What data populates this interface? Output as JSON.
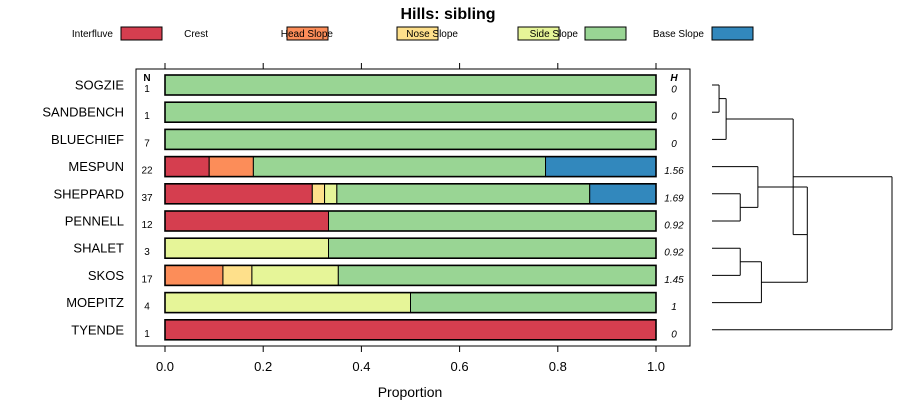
{
  "chart_data": {
    "type": "bar",
    "stacked": true,
    "orientation": "horizontal",
    "title": "Hills: sibling",
    "xlabel": "Proportion",
    "xlim": [
      0,
      1
    ],
    "x_ticks": [
      "0.0",
      "0.2",
      "0.4",
      "0.6",
      "0.8",
      "1.0"
    ],
    "n_header": "N",
    "h_header": "H",
    "legend_position": "top",
    "series": [
      {
        "name": "Interfluve",
        "color": "#d53e4f"
      },
      {
        "name": "Crest",
        "color": "#fc8d59"
      },
      {
        "name": "Head Slope",
        "color": "#fee08b"
      },
      {
        "name": "Nose Slope",
        "color": "#e6f598"
      },
      {
        "name": "Side Slope",
        "color": "#99d594"
      },
      {
        "name": "Base Slope",
        "color": "#3288bd"
      }
    ],
    "rows": [
      {
        "label": "SOGZIE",
        "n": "1",
        "h": "0",
        "values": [
          0,
          0,
          0,
          0,
          1.0,
          0
        ]
      },
      {
        "label": "SANDBENCH",
        "n": "1",
        "h": "0",
        "values": [
          0,
          0,
          0,
          0,
          1.0,
          0
        ]
      },
      {
        "label": "BLUECHIEF",
        "n": "7",
        "h": "0",
        "values": [
          0,
          0,
          0,
          0,
          1.0,
          0
        ]
      },
      {
        "label": "MESPUN",
        "n": "22",
        "h": "1.56",
        "values": [
          0.09,
          0.09,
          0,
          0,
          0.595,
          0.225
        ]
      },
      {
        "label": "SHEPPARD",
        "n": "37",
        "h": "1.69",
        "values": [
          0.3,
          0,
          0.025,
          0.025,
          0.515,
          0.135
        ]
      },
      {
        "label": "PENNELL",
        "n": "12",
        "h": "0.92",
        "values": [
          0.333,
          0,
          0,
          0,
          0.667,
          0
        ]
      },
      {
        "label": "SHALET",
        "n": "3",
        "h": "0.92",
        "values": [
          0,
          0,
          0,
          0.333,
          0.667,
          0
        ]
      },
      {
        "label": "SKOS",
        "n": "17",
        "h": "1.45",
        "values": [
          0,
          0.118,
          0.059,
          0.176,
          0.647,
          0
        ]
      },
      {
        "label": "MOEPITZ",
        "n": "4",
        "h": "1",
        "values": [
          0,
          0,
          0,
          0.5,
          0.5,
          0
        ]
      },
      {
        "label": "TYENDE",
        "n": "1",
        "h": "0",
        "values": [
          1.0,
          0,
          0,
          0,
          0,
          0
        ]
      }
    ],
    "dendrogram": {
      "leaf_order": [
        "SOGZIE",
        "SANDBENCH",
        "BLUECHIEF",
        "MESPUN",
        "SHEPPARD",
        "PENNELL",
        "SHALET",
        "SKOS",
        "MOEPITZ",
        "TYENDE"
      ],
      "merges": [
        {
          "left": [
            "leaf",
            0
          ],
          "right": [
            "leaf",
            1
          ],
          "height": 0.02
        },
        {
          "left": [
            "node",
            0
          ],
          "right": [
            "leaf",
            2
          ],
          "height": 0.04
        },
        {
          "left": [
            "leaf",
            4
          ],
          "right": [
            "leaf",
            5
          ],
          "height": 0.08
        },
        {
          "left": [
            "leaf",
            3
          ],
          "right": [
            "node",
            2
          ],
          "height": 0.13
        },
        {
          "left": [
            "leaf",
            6
          ],
          "right": [
            "leaf",
            7
          ],
          "height": 0.08
        },
        {
          "left": [
            "node",
            4
          ],
          "right": [
            "leaf",
            8
          ],
          "height": 0.14
        },
        {
          "left": [
            "node",
            3
          ],
          "right": [
            "node",
            5
          ],
          "height": 0.27
        },
        {
          "left": [
            "node",
            1
          ],
          "right": [
            "node",
            6
          ],
          "height": 0.23
        },
        {
          "left": [
            "node",
            7
          ],
          "right": [
            "leaf",
            9
          ],
          "height": 0.51
        }
      ]
    }
  }
}
